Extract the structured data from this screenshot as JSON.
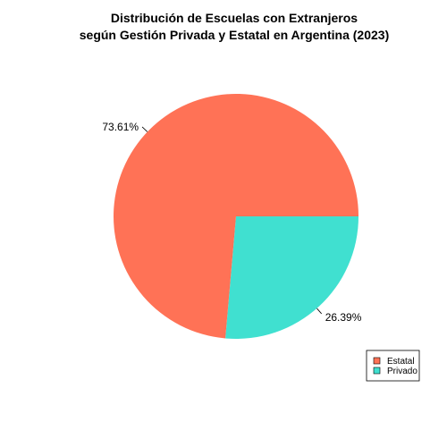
{
  "chart_data": {
    "type": "pie",
    "title": "Distribución de Escuelas con Extranjeros",
    "subtitle": "según Gestión Privada y Estatal en Argentina (2023)",
    "categories": [
      "Estatal",
      "Privado"
    ],
    "values": [
      73.61,
      26.39
    ],
    "labels": [
      "73.61%",
      "26.39%"
    ],
    "colors": [
      "#FF7256",
      "#40E0D0"
    ],
    "legend": {
      "placement": "bottom-right",
      "entries": [
        "Estatal",
        "Privado"
      ]
    }
  }
}
